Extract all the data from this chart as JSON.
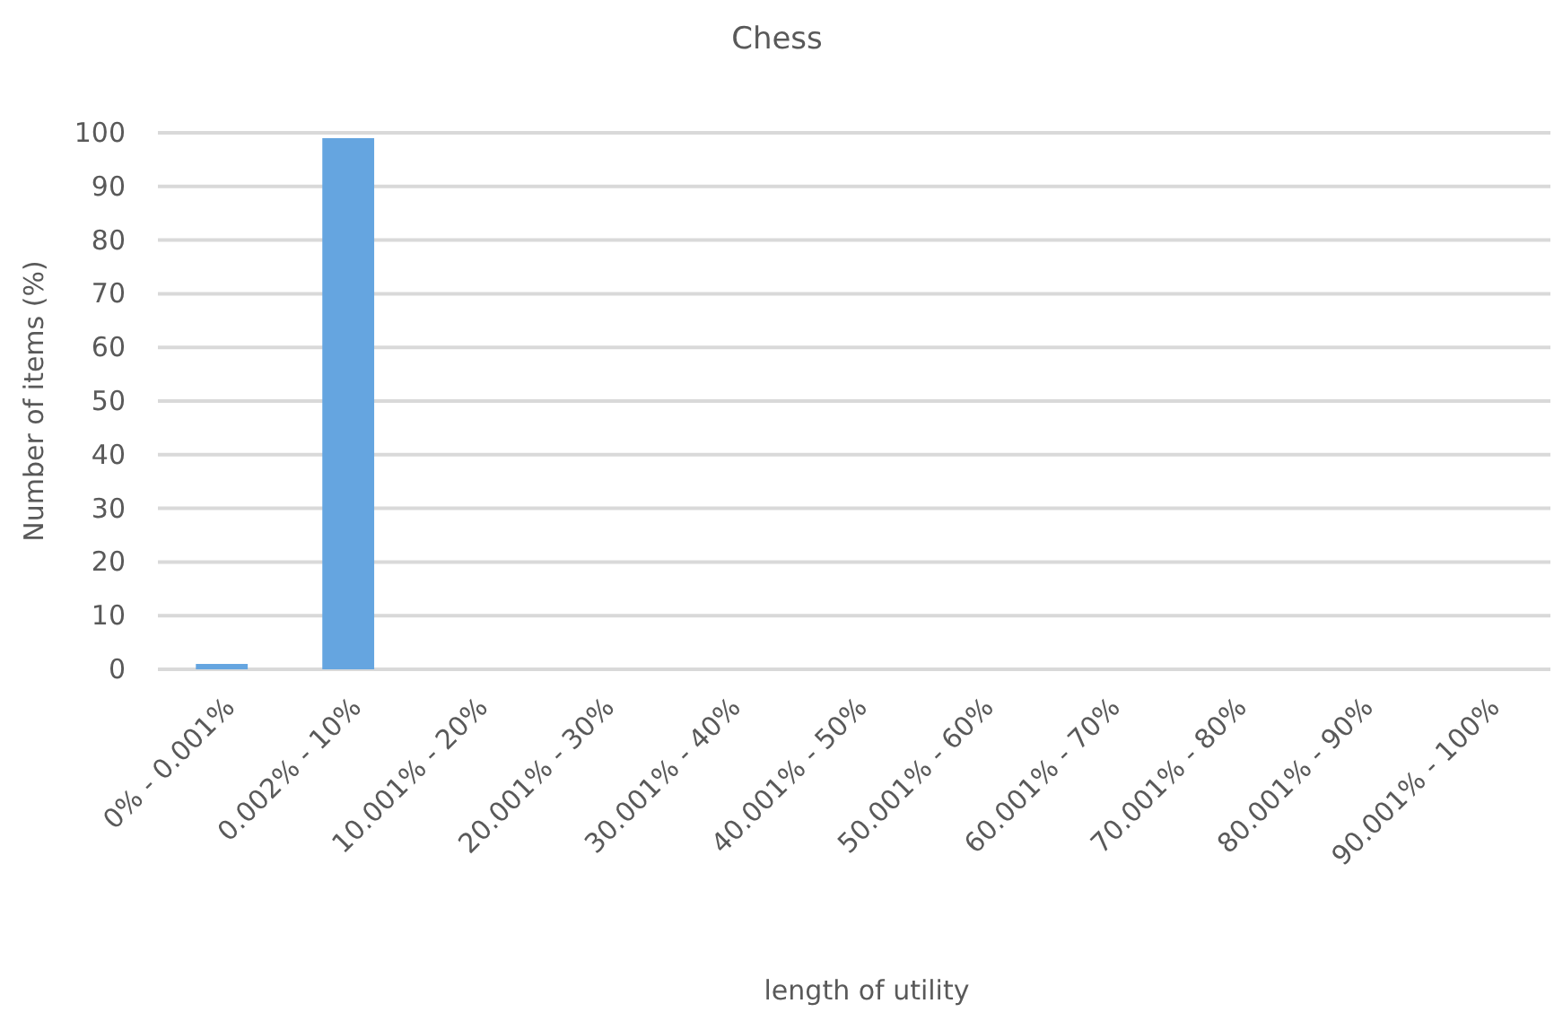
{
  "chart_data": {
    "type": "bar",
    "title": "Chess",
    "xlabel": "length of utility",
    "ylabel": "Number of items (%)",
    "categories": [
      "0% - 0.001%",
      "0.002% - 10%",
      "10.001% - 20%",
      "20.001% - 30%",
      "30.001% - 40%",
      "40.001% - 50%",
      "50.001% - 60%",
      "60.001% - 70%",
      "70.001% - 80%",
      "80.001% - 90%",
      "90.001% - 100%"
    ],
    "values": [
      1,
      99,
      0,
      0,
      0,
      0,
      0,
      0,
      0,
      0,
      0
    ],
    "color": "#65a5e0",
    "ylim": [
      0,
      100
    ],
    "yticks": [
      0,
      10,
      20,
      30,
      40,
      50,
      60,
      70,
      80,
      90,
      100
    ],
    "grid": "y"
  }
}
